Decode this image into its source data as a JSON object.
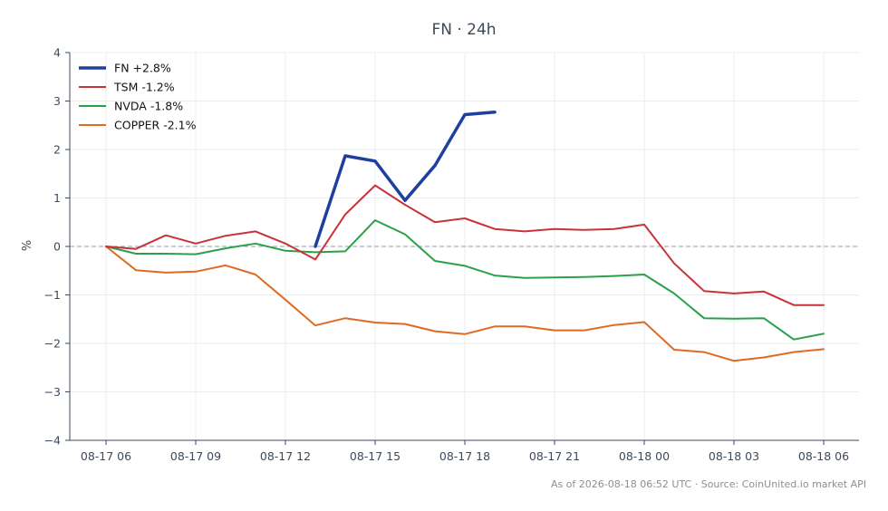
{
  "chart_data": {
    "type": "line",
    "title": "FN · 24h",
    "ylabel": "%",
    "xlabel": "",
    "ylim": [
      -4,
      4
    ],
    "y_ticks": [
      "4",
      "3",
      "2",
      "1",
      "0",
      "−1",
      "−2",
      "−3",
      "−4"
    ],
    "x_tick_labels": [
      "08-17 06",
      "08-17 09",
      "08-17 12",
      "08-17 15",
      "08-17 18",
      "08-17 21",
      "08-18 00",
      "08-18 03",
      "08-18 06"
    ],
    "x": [
      "08-17 06",
      "08-17 07",
      "08-17 08",
      "08-17 09",
      "08-17 10",
      "08-17 11",
      "08-17 12",
      "08-17 13",
      "08-17 14",
      "08-17 15",
      "08-17 16",
      "08-17 17",
      "08-17 18",
      "08-17 19",
      "08-17 20",
      "08-17 21",
      "08-17 22",
      "08-17 23",
      "08-18 00",
      "08-18 01",
      "08-18 02",
      "08-18 03",
      "08-18 04",
      "08-18 05",
      "08-18 06"
    ],
    "grid": true,
    "zero_line": true,
    "legend_position": "top-left",
    "series": [
      {
        "name": "FN +2.8%",
        "color": "#1f3f9e",
        "width": 3.5,
        "values": [
          null,
          null,
          null,
          null,
          null,
          null,
          null,
          0.0,
          1.87,
          1.76,
          0.95,
          1.67,
          2.72,
          2.77,
          null,
          null,
          null,
          null,
          null,
          null,
          null,
          null,
          null,
          null,
          null
        ]
      },
      {
        "name": "TSM -1.2%",
        "color": "#c8323a",
        "width": 2,
        "values": [
          0.0,
          -0.05,
          0.23,
          0.06,
          0.22,
          0.31,
          0.06,
          -0.27,
          0.66,
          1.26,
          0.86,
          0.5,
          0.58,
          0.36,
          0.31,
          0.36,
          0.34,
          0.36,
          0.45,
          -0.35,
          -0.92,
          -0.97,
          -0.93,
          -1.21,
          -1.21
        ]
      },
      {
        "name": "NVDA -1.8%",
        "color": "#2ba04a",
        "width": 2,
        "values": [
          0.0,
          -0.15,
          -0.15,
          -0.16,
          -0.04,
          0.06,
          -0.09,
          -0.12,
          -0.1,
          0.54,
          0.25,
          -0.3,
          -0.4,
          -0.6,
          -0.65,
          -0.64,
          -0.63,
          -0.61,
          -0.58,
          -0.97,
          -1.48,
          -1.49,
          -1.48,
          -1.92,
          -1.8
        ]
      },
      {
        "name": "COPPER -2.1%",
        "color": "#e06a22",
        "width": 2,
        "values": [
          0.0,
          -0.49,
          -0.54,
          -0.52,
          -0.39,
          -0.58,
          -1.1,
          -1.63,
          -1.48,
          -1.57,
          -1.6,
          -1.75,
          -1.81,
          -1.65,
          -1.65,
          -1.73,
          -1.73,
          -1.62,
          -1.56,
          -2.13,
          -2.18,
          -2.36,
          -2.29,
          -2.18,
          -2.12
        ]
      }
    ]
  },
  "footer": "As of 2026-08-18 06:52 UTC · Source: CoinUnited.io market API"
}
